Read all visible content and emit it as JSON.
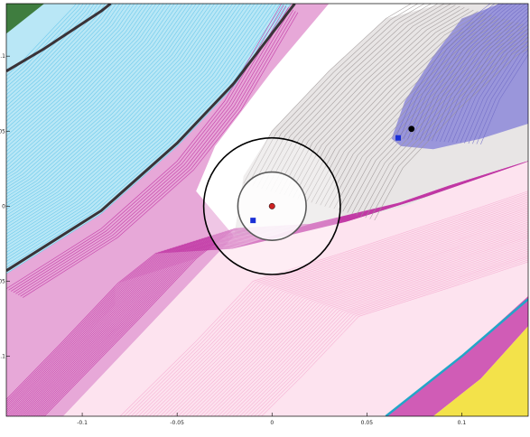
{
  "chart_data": {
    "type": "scatter",
    "title": "",
    "xlabel": "",
    "ylabel": "",
    "xlim": [
      -0.14,
      0.135
    ],
    "ylim": [
      -0.14,
      0.135
    ],
    "grid": false,
    "legend": "none",
    "x_ticks": [
      -0.1,
      -0.05,
      0,
      0.05,
      0.1
    ],
    "x_tick_labels": [
      "-0.1",
      "-0.05",
      "0",
      "0.05",
      "0.1"
    ],
    "y_ticks": [
      -0.1,
      -0.05,
      0,
      0.05,
      0.1
    ],
    "y_tick_labels": [
      "-0.1",
      "-0.05",
      "0",
      "0.05",
      "0.1"
    ],
    "colors": {
      "cyan": "#7fd3ee",
      "magenta": "#c23aa6",
      "grey": "#a6a0a0",
      "white_band": "#ffffff",
      "pink": "#f6bcd8",
      "violet": "#7b77cf",
      "green": "#2f6f2f",
      "yellow": "#f3e24a",
      "dark_line": "#3a3338",
      "circle": "#000000"
    },
    "circles": [
      {
        "cx": 0,
        "cy": 0,
        "r": 0.018
      },
      {
        "cx": 0,
        "cy": 0,
        "r": 0.036
      }
    ],
    "points": [
      {
        "name": "equilibrium",
        "x": 0,
        "y": 0,
        "color": "#cc2222",
        "shape": "circle"
      },
      {
        "name": "blue-square-1",
        "x": -0.01,
        "y": -0.0095,
        "color": "#1a2fd6",
        "shape": "square"
      },
      {
        "name": "blue-square-2",
        "x": 0.0665,
        "y": 0.0455,
        "color": "#1a2fd6",
        "shape": "square"
      },
      {
        "name": "black-point",
        "x": 0.0735,
        "y": 0.0515,
        "color": "#000000",
        "shape": "circle"
      }
    ]
  }
}
